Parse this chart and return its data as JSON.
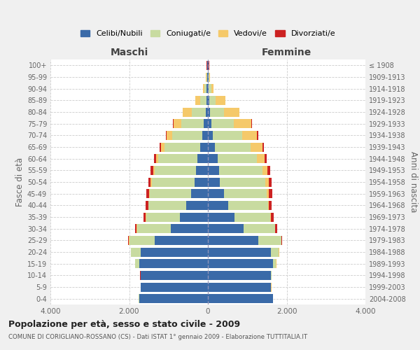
{
  "age_groups": [
    "0-4",
    "5-9",
    "10-14",
    "15-19",
    "20-24",
    "25-29",
    "30-34",
    "35-39",
    "40-44",
    "45-49",
    "50-54",
    "55-59",
    "60-64",
    "65-69",
    "70-74",
    "75-79",
    "80-84",
    "85-89",
    "90-94",
    "95-99",
    "100+"
  ],
  "birth_years": [
    "2004-2008",
    "1999-2003",
    "1994-1998",
    "1989-1993",
    "1984-1988",
    "1979-1983",
    "1974-1978",
    "1969-1973",
    "1964-1968",
    "1959-1963",
    "1954-1958",
    "1949-1953",
    "1944-1948",
    "1939-1943",
    "1934-1938",
    "1929-1933",
    "1924-1928",
    "1919-1923",
    "1914-1918",
    "1909-1913",
    "≤ 1908"
  ],
  "male": {
    "celibi": [
      1750,
      1700,
      1700,
      1750,
      1700,
      1350,
      950,
      720,
      560,
      430,
      330,
      310,
      270,
      200,
      150,
      100,
      60,
      40,
      30,
      20,
      10
    ],
    "coniugati": [
      5,
      5,
      10,
      100,
      250,
      650,
      850,
      850,
      950,
      1050,
      1100,
      1050,
      1000,
      900,
      750,
      580,
      350,
      150,
      60,
      20,
      10
    ],
    "vedovi": [
      5,
      5,
      5,
      5,
      5,
      5,
      5,
      5,
      5,
      10,
      20,
      30,
      50,
      100,
      150,
      200,
      230,
      130,
      40,
      5,
      5
    ],
    "divorziati": [
      2,
      2,
      2,
      2,
      5,
      15,
      40,
      60,
      70,
      75,
      70,
      60,
      45,
      30,
      20,
      10,
      5,
      5,
      2,
      2,
      2
    ]
  },
  "female": {
    "nubili": [
      1650,
      1600,
      1600,
      1650,
      1600,
      1280,
      900,
      680,
      520,
      400,
      310,
      280,
      240,
      180,
      120,
      80,
      50,
      40,
      25,
      15,
      10
    ],
    "coniugate": [
      5,
      5,
      10,
      80,
      200,
      580,
      800,
      900,
      1000,
      1100,
      1150,
      1100,
      1000,
      900,
      750,
      580,
      350,
      150,
      60,
      20,
      10
    ],
    "vedove": [
      5,
      5,
      5,
      5,
      5,
      8,
      10,
      15,
      25,
      50,
      80,
      130,
      200,
      300,
      380,
      450,
      400,
      250,
      60,
      10,
      5
    ],
    "divorziate": [
      2,
      2,
      2,
      2,
      8,
      20,
      45,
      70,
      80,
      85,
      80,
      70,
      55,
      35,
      25,
      10,
      5,
      5,
      2,
      2,
      2
    ]
  },
  "colors": {
    "celibi": "#3a6aa8",
    "coniugati": "#c8dba0",
    "vedovi": "#f5c96a",
    "divorziati": "#cc2222"
  },
  "xlim": 4000,
  "title": "Popolazione per età, sesso e stato civile - 2009",
  "subtitle": "COMUNE DI CORIGLIANO-ROSSANO (CS) - Dati ISTAT 1° gennaio 2009 - Elaborazione TUTTITALIA.IT",
  "ylabel_left": "Fasce di età",
  "ylabel_right": "Anni di nascita",
  "xlabel_left": "Maschi",
  "xlabel_right": "Femmine",
  "legend_labels": [
    "Celibi/Nubili",
    "Coniugati/e",
    "Vedovi/e",
    "Divorziati/e"
  ],
  "background_color": "#f0f0f0",
  "plot_background": "#ffffff"
}
